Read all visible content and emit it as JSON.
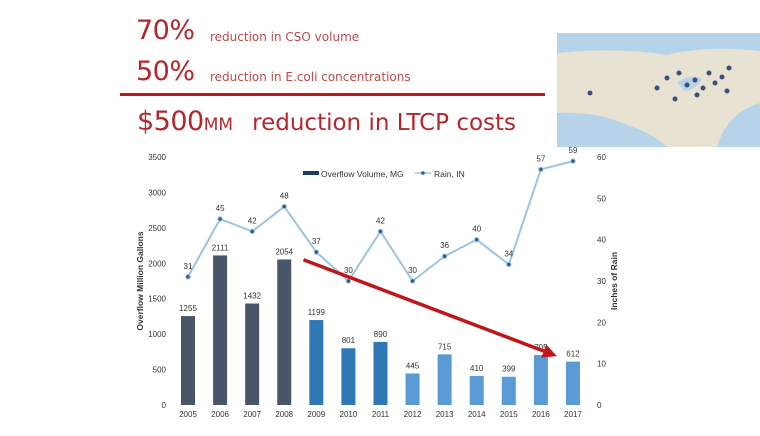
{
  "stats": [
    {
      "value": "70%",
      "label": "reduction in CSO volume"
    },
    {
      "value": "50%",
      "label": "reduction in E.coli concentrations"
    },
    {
      "value": "$500",
      "unit": "MM",
      "label": "reduction in LTCP costs"
    }
  ],
  "map": {
    "icon": "us-map-with-location-pins"
  },
  "chart_data": {
    "type": "bar+line",
    "categories": [
      "2005",
      "2006",
      "2007",
      "2008",
      "2009",
      "2010",
      "2011",
      "2012",
      "2013",
      "2014",
      "2015",
      "2016",
      "2017"
    ],
    "series": [
      {
        "name": "Overflow Volume, MG",
        "type": "bar",
        "axis": "left",
        "values": [
          1255,
          2111,
          1432,
          2054,
          1199,
          801,
          890,
          445,
          715,
          410,
          399,
          705,
          612
        ],
        "colors": [
          "#48556b",
          "#48556b",
          "#48556b",
          "#48556b",
          "#2f78b8",
          "#2f78b8",
          "#2f78b8",
          "#5b9bd5",
          "#5b9bd5",
          "#5b9bd5",
          "#5b9bd5",
          "#5b9bd5",
          "#5b9bd5"
        ]
      },
      {
        "name": "Rain, IN",
        "type": "line",
        "axis": "right",
        "values": [
          31,
          45,
          42,
          48,
          37,
          30,
          42,
          30,
          36,
          40,
          34,
          57,
          59
        ],
        "color": "#9dc3e2",
        "marker_color": "#2a5d8f"
      }
    ],
    "ylabel": "Overflow Million Gallons",
    "y2label": "Inches of Rain",
    "ylim": [
      0,
      3500
    ],
    "yticks": [
      0,
      500,
      1000,
      1500,
      2000,
      2500,
      3000,
      3500
    ],
    "y2lim": [
      0,
      60
    ],
    "y2ticks": [
      0,
      10,
      20,
      30,
      40,
      50,
      60
    ],
    "legend": "top-center",
    "grid": false,
    "annotation": {
      "type": "trend-arrow",
      "color": "#c0151b",
      "from": [
        "2008.6",
        2050
      ],
      "to": [
        "2016.5",
        690
      ]
    }
  }
}
